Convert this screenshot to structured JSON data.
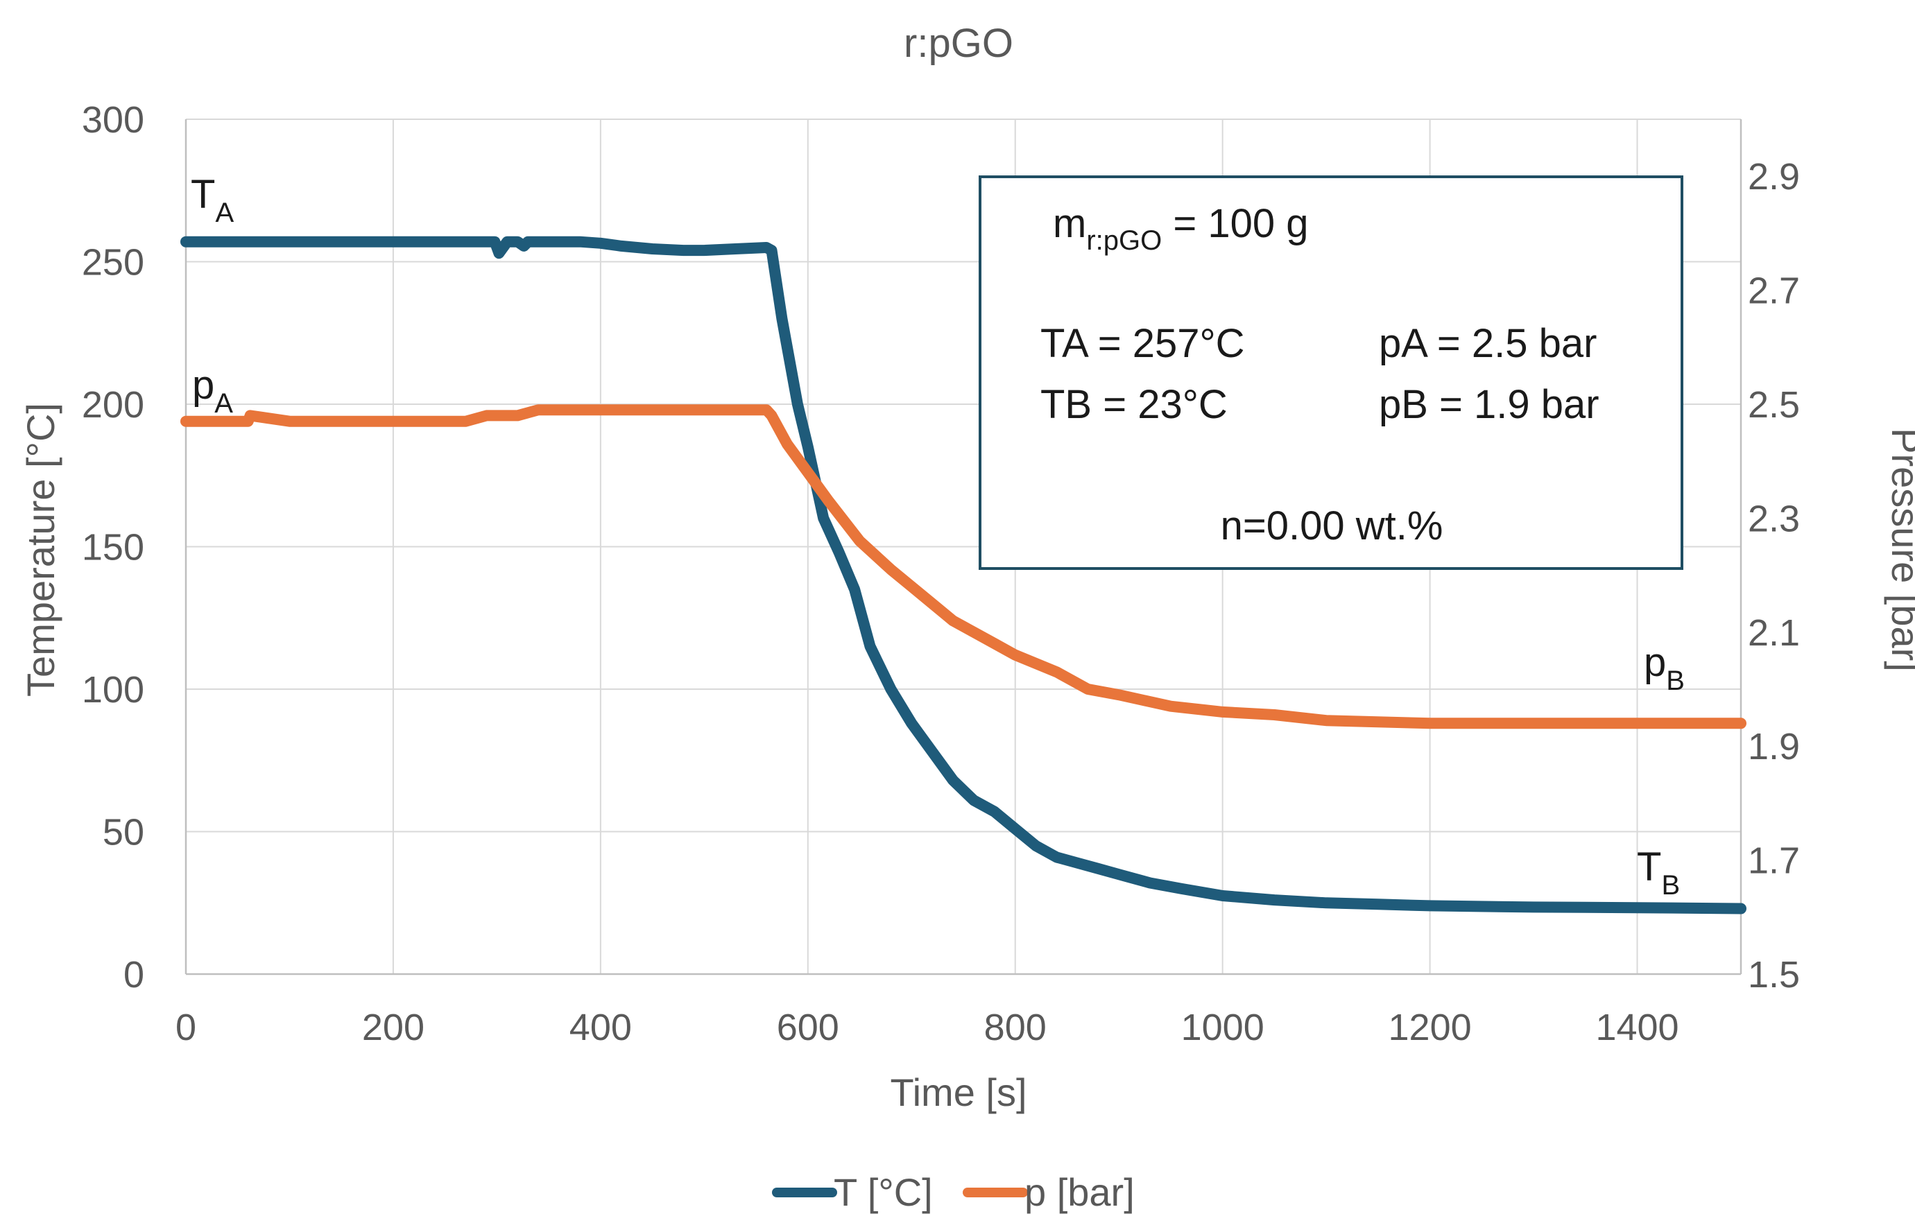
{
  "chart_data": {
    "type": "line",
    "title": "r:pGO",
    "xlabel": "Time [s]",
    "ylabel": "Temperature [°C]",
    "y2label": "Pressure [bar]",
    "xlim": [
      0,
      1500
    ],
    "ylim": [
      0,
      300
    ],
    "y2lim": [
      1.5,
      3.0
    ],
    "x_ticks": [
      0,
      200,
      400,
      600,
      800,
      1000,
      1200,
      1400
    ],
    "y_ticks": [
      0,
      50,
      100,
      150,
      200,
      250,
      300
    ],
    "y2_ticks": [
      "1.5",
      "1.7",
      "1.9",
      "2.1",
      "2.3",
      "2.5",
      "2.7",
      "2.9"
    ],
    "grid": true,
    "legend_position": "bottom-center",
    "series": [
      {
        "name": "T [°C]",
        "axis": "left",
        "color": "#1f5b7a",
        "x": [
          0,
          100,
          200,
          290,
          298,
          302,
          310,
          320,
          326,
          330,
          338,
          360,
          380,
          400,
          420,
          450,
          480,
          500,
          530,
          560,
          565,
          575,
          590,
          600,
          615,
          630,
          645,
          660,
          680,
          700,
          720,
          740,
          760,
          780,
          800,
          820,
          840,
          860,
          880,
          900,
          930,
          960,
          1000,
          1050,
          1100,
          1150,
          1200,
          1300,
          1400,
          1500
        ],
        "values": [
          257,
          257,
          257,
          257,
          257,
          253,
          257,
          257,
          255.5,
          257,
          257,
          257,
          257,
          256.5,
          255.5,
          254.5,
          254,
          254,
          254.5,
          255,
          254,
          230,
          200,
          185,
          160,
          148,
          135,
          115,
          100,
          88,
          78,
          68,
          61,
          57,
          51,
          45,
          41,
          39,
          37,
          35,
          32,
          30,
          27.5,
          26,
          25,
          24.5,
          24,
          23.5,
          23.3,
          23
        ]
      },
      {
        "name": "p [bar]",
        "axis": "right",
        "color": "#e8753a",
        "x": [
          0,
          60,
          62,
          100,
          200,
          240,
          270,
          290,
          300,
          320,
          340,
          360,
          400,
          420,
          450,
          500,
          560,
          565,
          580,
          600,
          620,
          650,
          680,
          700,
          720,
          740,
          760,
          780,
          800,
          840,
          870,
          900,
          950,
          1000,
          1050,
          1100,
          1200,
          1300,
          1400,
          1500
        ],
        "values": [
          2.47,
          2.47,
          2.48,
          2.47,
          2.47,
          2.47,
          2.47,
          2.48,
          2.48,
          2.48,
          2.49,
          2.49,
          2.49,
          2.49,
          2.49,
          2.49,
          2.49,
          2.48,
          2.43,
          2.38,
          2.33,
          2.26,
          2.21,
          2.18,
          2.15,
          2.12,
          2.1,
          2.08,
          2.06,
          2.03,
          2.0,
          1.99,
          1.97,
          1.96,
          1.955,
          1.945,
          1.94,
          1.94,
          1.94,
          1.94
        ]
      }
    ],
    "curve_labels": {
      "TA": {
        "main": "T",
        "sub": "A"
      },
      "pA": {
        "main": "p",
        "sub": "A"
      },
      "pB": {
        "main": "p",
        "sub": "B"
      },
      "TB": {
        "main": "T",
        "sub": "B"
      }
    },
    "annotation_box": {
      "mass_prefix": "m",
      "mass_sub": "r:pGO",
      "mass_value": " = 100 g",
      "ta": "TA = 257°C",
      "tb": "TB = 23°C",
      "pa": "pA = 2.5 bar",
      "pb": "pB = 1.9 bar",
      "n": "n=0.00 wt.%"
    }
  }
}
